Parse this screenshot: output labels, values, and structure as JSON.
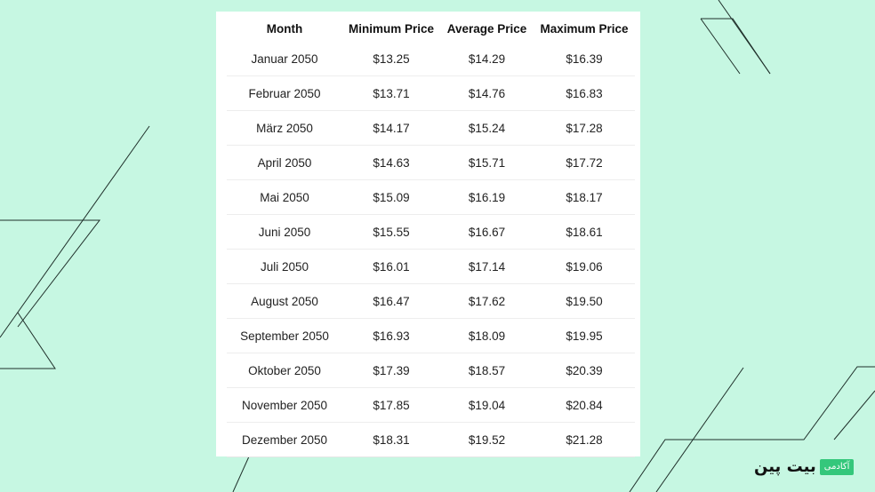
{
  "table": {
    "headers": [
      "Month",
      "Minimum Price",
      "Average Price",
      "Maximum Price"
    ],
    "rows": [
      [
        "Januar 2050",
        "$13.25",
        "$14.29",
        "$16.39"
      ],
      [
        "Februar 2050",
        "$13.71",
        "$14.76",
        "$16.83"
      ],
      [
        "März 2050",
        "$14.17",
        "$15.24",
        "$17.28"
      ],
      [
        "April 2050",
        "$14.63",
        "$15.71",
        "$17.72"
      ],
      [
        "Mai 2050",
        "$15.09",
        "$16.19",
        "$18.17"
      ],
      [
        "Juni 2050",
        "$15.55",
        "$16.67",
        "$18.61"
      ],
      [
        "Juli 2050",
        "$16.01",
        "$17.14",
        "$19.06"
      ],
      [
        "August 2050",
        "$16.47",
        "$17.62",
        "$19.50"
      ],
      [
        "September 2050",
        "$16.93",
        "$18.09",
        "$19.95"
      ],
      [
        "Oktober 2050",
        "$17.39",
        "$18.57",
        "$20.39"
      ],
      [
        "November 2050",
        "$17.85",
        "$19.04",
        "$20.84"
      ],
      [
        "Dezember 2050",
        "$18.31",
        "$19.52",
        "$21.28"
      ]
    ]
  },
  "logo": {
    "main_text": "بیت پین",
    "badge_text": "آکادمی"
  },
  "colors": {
    "background": "#c6f7e2",
    "line": "#1f2f2a",
    "badge": "#34c77b"
  }
}
